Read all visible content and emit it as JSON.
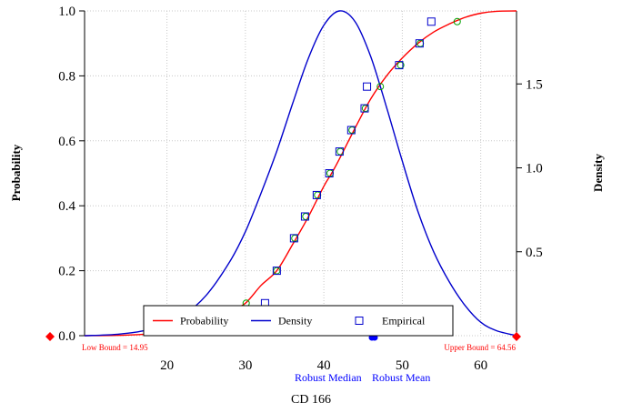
{
  "chart_data": {
    "type": "line",
    "xlabel": "CD 166",
    "ylabel_left": "Probability",
    "ylabel_right": "Density",
    "xlim": [
      9.5,
      64.56
    ],
    "ylim_left": [
      0,
      1
    ],
    "ylim_right": [
      0,
      1.935
    ],
    "xticks": [
      20,
      30,
      40,
      50,
      60
    ],
    "yticks_left": [
      0.0,
      0.2,
      0.4,
      0.6,
      0.8,
      1.0
    ],
    "yticks_right": [
      0.5,
      1.0,
      1.5
    ],
    "grid": true,
    "legend_position": "bottom-center",
    "series": [
      {
        "name": "Probability",
        "color": "#ff0000",
        "axis": "left",
        "x": [
          9.5,
          15,
          20,
          22,
          24,
          26,
          28,
          30,
          32,
          34,
          36,
          38,
          40,
          41,
          42,
          44,
          46,
          48,
          50,
          52,
          54,
          56,
          58,
          60,
          62,
          64.56
        ],
        "y": [
          0.0,
          0.002,
          0.01,
          0.02,
          0.035,
          0.05,
          0.075,
          0.1,
          0.155,
          0.2,
          0.28,
          0.365,
          0.46,
          0.5,
          0.545,
          0.64,
          0.73,
          0.8,
          0.855,
          0.9,
          0.935,
          0.96,
          0.98,
          0.993,
          0.999,
          1.0
        ]
      },
      {
        "name": "Density",
        "color": "#0000cc",
        "axis": "right",
        "x": [
          9.5,
          14,
          18,
          22,
          25,
          28,
          30,
          32,
          34,
          36,
          38,
          40,
          42,
          44,
          46,
          48,
          50,
          52,
          54,
          56,
          58,
          60,
          62,
          64.56
        ],
        "y": [
          0.0,
          0.01,
          0.04,
          0.12,
          0.24,
          0.44,
          0.62,
          0.85,
          1.1,
          1.38,
          1.65,
          1.85,
          1.935,
          1.87,
          1.66,
          1.36,
          1.04,
          0.74,
          0.5,
          0.32,
          0.18,
          0.08,
          0.03,
          0.0
        ]
      }
    ],
    "empirical": {
      "name": "Empirical",
      "color": "#0000cc",
      "x": [
        32.5,
        34.0,
        36.2,
        37.6,
        39.1,
        40.7,
        42.0,
        43.5,
        45.2,
        45.5,
        49.6,
        52.2,
        53.7
      ],
      "y": [
        0.1,
        0.2,
        0.3,
        0.367,
        0.433,
        0.5,
        0.567,
        0.633,
        0.7,
        0.767,
        0.833,
        0.9,
        0.967
      ]
    },
    "fitted_points": {
      "color": "#00a000",
      "x": [
        30.1,
        34.0,
        36.3,
        37.7,
        39.2,
        40.8,
        42.1,
        43.6,
        45.3,
        47.2,
        49.8,
        52.3,
        57.0
      ],
      "y": [
        0.1,
        0.2,
        0.3,
        0.367,
        0.433,
        0.5,
        0.567,
        0.633,
        0.7,
        0.767,
        0.833,
        0.9,
        0.967
      ]
    },
    "annotations": {
      "low_bound_label": "Low Bound = 14.95",
      "upper_bound_label": "Upper Bound = 64.56",
      "robust_median_label": "Robust Median",
      "robust_mean_label": "Robust Mean",
      "annotation_color_bounds": "#ff0000",
      "annotation_color_robust": "#0000ff"
    },
    "legend_entries": [
      {
        "label": "Probability",
        "symbol": "line",
        "color": "#ff0000"
      },
      {
        "label": "Density",
        "symbol": "line",
        "color": "#0000cc"
      },
      {
        "label": "Empirical",
        "symbol": "square",
        "color": "#0000cc"
      }
    ]
  }
}
